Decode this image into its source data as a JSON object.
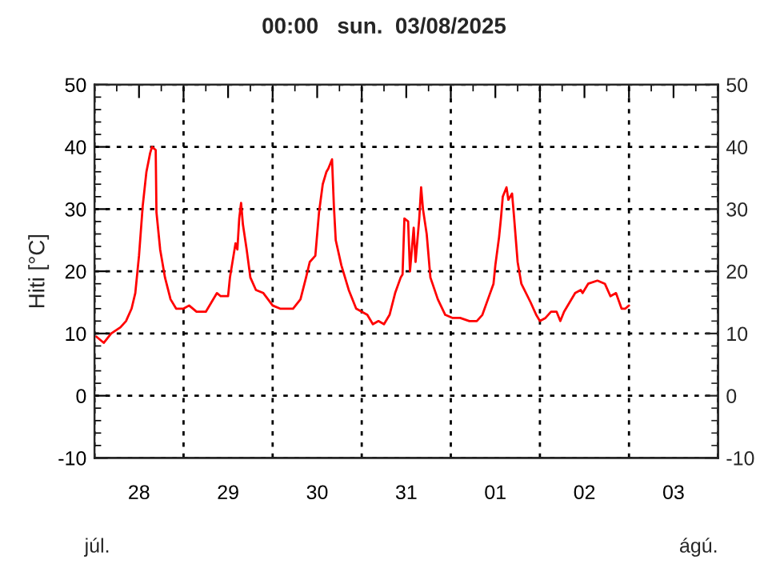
{
  "chart_data": {
    "type": "line",
    "title": "00:00   sun.  03/08/2025",
    "ylabel": "Hiti [°C]",
    "x": [
      "2025-07-28T00:30",
      "2025-07-28T02:30",
      "2025-07-28T04:30",
      "2025-07-28T07:00",
      "2025-07-28T08:30",
      "2025-07-28T10:00",
      "2025-07-28T11:00",
      "2025-07-28T12:00",
      "2025-07-28T13:00",
      "2025-07-28T14:00",
      "2025-07-28T15:00",
      "2025-07-28T15:30",
      "2025-07-28T16:30",
      "2025-07-28T16:42",
      "2025-07-28T17:42",
      "2025-07-28T19:00",
      "2025-07-28T20:30",
      "2025-07-28T22:00",
      "2025-07-29T00:00",
      "2025-07-29T01:30",
      "2025-07-29T03:30",
      "2025-07-29T06:00",
      "2025-07-29T07:30",
      "2025-07-29T09:00",
      "2025-07-29T10:00",
      "2025-07-29T12:00",
      "2025-07-29T12:30",
      "2025-07-29T14:00",
      "2025-07-29T14:30",
      "2025-07-29T15:00",
      "2025-07-29T15:30",
      "2025-07-29T16:00",
      "2025-07-29T17:00",
      "2025-07-29T18:00",
      "2025-07-29T19:30",
      "2025-07-29T21:30",
      "2025-07-30T00:00",
      "2025-07-30T02:00",
      "2025-07-30T05:30",
      "2025-07-30T07:30",
      "2025-07-30T09:00",
      "2025-07-30T10:00",
      "2025-07-30T11:30",
      "2025-07-30T12:30",
      "2025-07-30T13:30",
      "2025-07-30T14:30",
      "2025-07-30T15:00",
      "2025-07-30T16:00",
      "2025-07-30T16:30",
      "2025-07-30T17:00",
      "2025-07-30T18:30",
      "2025-07-30T20:30",
      "2025-07-30T22:30",
      "2025-07-31T01:30",
      "2025-07-31T03:00",
      "2025-07-31T04:30",
      "2025-07-31T06:00",
      "2025-07-31T07:30",
      "2025-07-31T09:00",
      "2025-07-31T10:30",
      "2025-07-31T11:00",
      "2025-07-31T11:30",
      "2025-07-31T12:30",
      "2025-07-31T13:00",
      "2025-07-31T14:00",
      "2025-07-31T14:30",
      "2025-07-31T15:30",
      "2025-07-31T16:00",
      "2025-07-31T16:30",
      "2025-07-31T17:30",
      "2025-07-31T18:30",
      "2025-07-31T20:30",
      "2025-07-31T22:30",
      "2025-08-01T00:30",
      "2025-08-01T02:30",
      "2025-08-01T05:00",
      "2025-08-01T07:00",
      "2025-08-01T08:30",
      "2025-08-01T10:00",
      "2025-08-01T11:30",
      "2025-08-01T12:00",
      "2025-08-01T13:00",
      "2025-08-01T13:30",
      "2025-08-01T14:00",
      "2025-08-01T15:00",
      "2025-08-01T15:30",
      "2025-08-01T16:30",
      "2025-08-01T17:00",
      "2025-08-01T18:00",
      "2025-08-01T19:00",
      "2025-08-01T21:30",
      "2025-08-01T23:00",
      "2025-08-02T00:00",
      "2025-08-02T01:30",
      "2025-08-02T03:00",
      "2025-08-02T04:30",
      "2025-08-02T05:30",
      "2025-08-02T06:30",
      "2025-08-02T08:00",
      "2025-08-02T09:30",
      "2025-08-02T11:00",
      "2025-08-02T11:30",
      "2025-08-02T13:00",
      "2025-08-02T15:30",
      "2025-08-02T17:30",
      "2025-08-02T19:00",
      "2025-08-02T20:30",
      "2025-08-02T22:00",
      "2025-08-02T23:00",
      "2025-08-03T00:00"
    ],
    "series": [
      {
        "color": "#ff0000",
        "values": [
          9.5,
          8.5,
          10,
          11,
          12,
          14,
          16.5,
          22.5,
          30.5,
          36,
          39,
          40,
          39.5,
          29.5,
          23.5,
          19,
          15.5,
          14,
          14,
          14.5,
          13.5,
          13.5,
          15,
          16.5,
          16,
          16,
          19,
          24.5,
          23.5,
          28.5,
          31,
          27.5,
          23.5,
          19,
          17,
          16.5,
          14.5,
          14,
          14,
          15.5,
          19,
          21.5,
          22.5,
          29.5,
          34,
          36,
          36.5,
          38,
          30.5,
          25,
          21,
          17,
          14,
          13,
          11.5,
          12,
          11.5,
          13,
          16.5,
          19,
          19.5,
          28.5,
          28,
          20,
          27,
          21.5,
          28.5,
          33.5,
          30,
          26,
          19,
          15.5,
          13,
          12.5,
          12.5,
          12,
          12,
          13,
          15.5,
          18,
          21,
          25.5,
          28.5,
          32,
          33.5,
          31.5,
          32.5,
          29,
          21.5,
          18,
          15,
          13,
          12,
          12.5,
          13.5,
          13.5,
          12,
          13.5,
          15,
          16.5,
          17,
          16.5,
          18,
          18.5,
          18,
          16,
          16.5,
          14,
          14,
          14.5
        ]
      }
    ],
    "xlim": [
      "2025-07-28T00:00",
      "2025-08-04T00:00"
    ],
    "xticks": [
      {
        "value": "2025-07-28T00:00",
        "label": null
      },
      {
        "value": "2025-07-28T12:00",
        "label": "28"
      },
      {
        "value": "2025-07-29T00:00",
        "label": null
      },
      {
        "value": "2025-07-29T12:00",
        "label": "29"
      },
      {
        "value": "2025-07-30T00:00",
        "label": null
      },
      {
        "value": "2025-07-30T12:00",
        "label": "30"
      },
      {
        "value": "2025-07-31T00:00",
        "label": null
      },
      {
        "value": "2025-07-31T12:00",
        "label": "31"
      },
      {
        "value": "2025-08-01T00:00",
        "label": null
      },
      {
        "value": "2025-08-01T12:00",
        "label": "01"
      },
      {
        "value": "2025-08-02T00:00",
        "label": null
      },
      {
        "value": "2025-08-02T12:00",
        "label": "02"
      },
      {
        "value": "2025-08-03T00:00",
        "label": null
      },
      {
        "value": "2025-08-03T12:00",
        "label": "03"
      },
      {
        "value": "2025-08-04T00:00",
        "label": null
      }
    ],
    "ylim": [
      -10,
      50
    ],
    "yticks": [
      -10,
      0,
      10,
      20,
      30,
      40,
      50
    ],
    "y2lim": [
      -10,
      50
    ],
    "y2ticks": [
      -10,
      0,
      10,
      20,
      30,
      40,
      50
    ],
    "grid": true,
    "marker": "none",
    "line_style": "solid",
    "annotations": [
      "júl.",
      "ágú."
    ]
  }
}
